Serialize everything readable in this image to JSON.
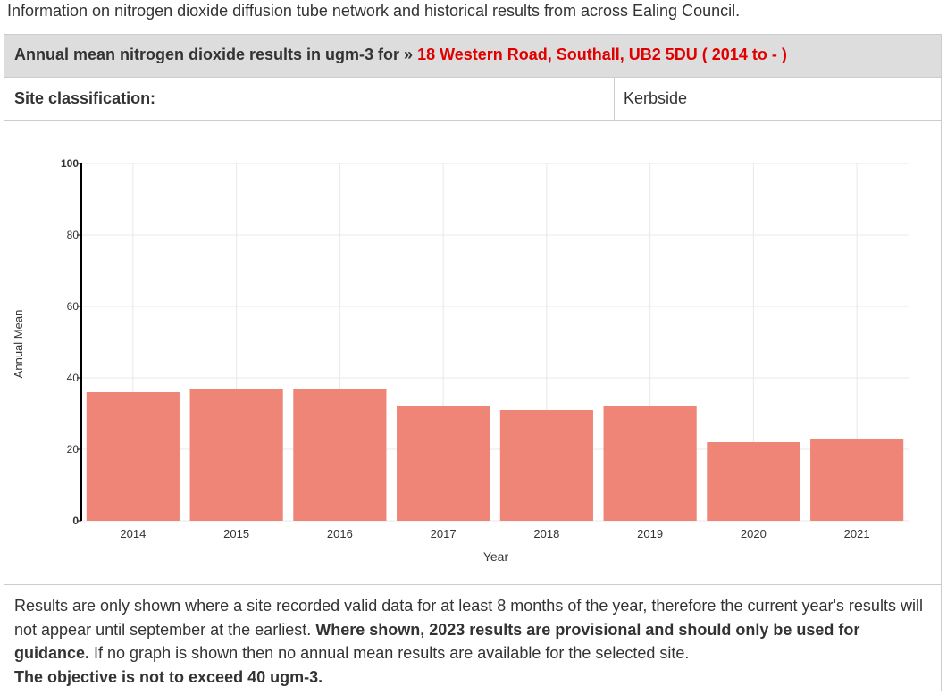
{
  "intro_text": "Information on nitrogen dioxide diffusion tube network and historical results from across Ealing Council.",
  "header": {
    "prefix": "Annual mean nitrogen dioxide results in ugm-3 for » ",
    "site": "18 Western Road, Southall, UB2 5DU ( 2014 to - )"
  },
  "classification": {
    "label": "Site classification:",
    "value": "Kerbside"
  },
  "colors": {
    "bar": "#ee8577",
    "grid": "#e8e8e8",
    "axis": "#000000",
    "site_link": "#e00000"
  },
  "chart_data": {
    "type": "bar",
    "categories": [
      "2014",
      "2015",
      "2016",
      "2017",
      "2018",
      "2019",
      "2020",
      "2021"
    ],
    "values": [
      36,
      37,
      37,
      32,
      31,
      32,
      22,
      23
    ],
    "title": "",
    "xlabel": "Year",
    "ylabel": "Annual Mean",
    "ylim": [
      0,
      100
    ],
    "yticks": [
      0,
      20,
      40,
      60,
      80,
      100
    ],
    "grid": true
  },
  "footer": {
    "text1": "Results are only shown where a site recorded valid data for at least 8 months of the year, therefore the current year's results will not appear until september at the earliest. ",
    "bold1": "Where shown, 2023 results are provisional and should only be used for guidance.",
    "text2": " If no graph is shown then no annual mean results are available for the selected site.",
    "bold2": "The objective is not to exceed 40 ugm-3."
  }
}
